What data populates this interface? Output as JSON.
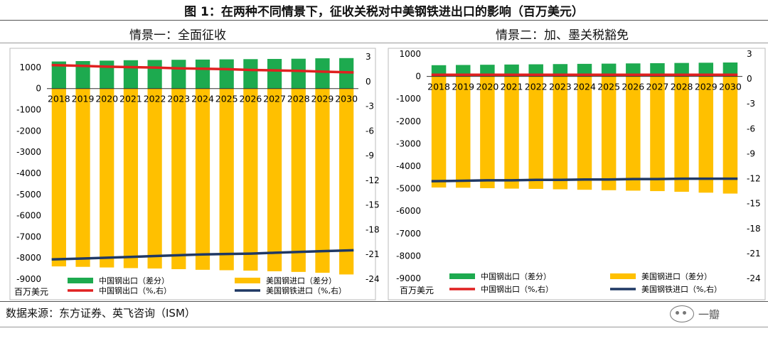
{
  "figure_title": "图 1：在两种不同情景下，征收关税对中美钢铁进出口的影响（百万美元）",
  "source_note": "数据来源：东方证券、英飞咨询（ISM）",
  "watermark": "一瓣",
  "colors": {
    "china_export_bar": "#1DAA4F",
    "us_import_bar": "#FFC000",
    "china_export_line": "#E02020",
    "us_import_line": "#1F3864"
  },
  "chart_data": [
    {
      "type": "bar",
      "subtitle": "情景一：全面征收",
      "categories": [
        "2018",
        "2019",
        "2020",
        "2021",
        "2022",
        "2023",
        "2024",
        "2025",
        "2026",
        "2027",
        "2028",
        "2029",
        "2030"
      ],
      "ylabel": "百万美元",
      "ylim": [
        -9000,
        1500
      ],
      "yticks": [
        1000,
        0,
        -1000,
        -2000,
        -3000,
        -4000,
        -5000,
        -6000,
        -7000,
        -8000,
        -9000
      ],
      "y2lim": [
        -24,
        3
      ],
      "y2ticks": [
        3,
        0,
        -3,
        -6,
        -9,
        -12,
        -15,
        -18,
        -21,
        -24
      ],
      "series": [
        {
          "name": "中国钢出口（差分）",
          "kind": "bar",
          "axis": "left",
          "color": "#1DAA4F",
          "values": [
            1280,
            1300,
            1320,
            1340,
            1350,
            1360,
            1370,
            1380,
            1390,
            1400,
            1410,
            1430,
            1440
          ]
        },
        {
          "name": "美国钢进口（差分）",
          "kind": "bar",
          "axis": "left",
          "color": "#FFC000",
          "values": [
            -8400,
            -8420,
            -8450,
            -8480,
            -8500,
            -8530,
            -8560,
            -8580,
            -8600,
            -8630,
            -8660,
            -8700,
            -8780
          ]
        }
      ],
      "lines": [
        {
          "name": "中国钢出口（%,右）",
          "axis": "right",
          "color": "#E02020",
          "values": [
            2.0,
            1.9,
            1.8,
            1.75,
            1.7,
            1.6,
            1.55,
            1.5,
            1.4,
            1.35,
            1.3,
            1.2,
            1.1
          ]
        },
        {
          "name": "美国钢铁进口（%,右）",
          "axis": "right",
          "color": "#1F3864",
          "values": [
            -21.6,
            -21.5,
            -21.4,
            -21.3,
            -21.2,
            -21.1,
            -21.0,
            -20.95,
            -20.9,
            -20.8,
            -20.7,
            -20.6,
            -20.5
          ]
        }
      ]
    },
    {
      "type": "bar",
      "subtitle": "情景二：加、墨关税豁免",
      "categories": [
        "2018",
        "2019",
        "2020",
        "2021",
        "2022",
        "2023",
        "2024",
        "2025",
        "2026",
        "2027",
        "2028",
        "2029",
        "2030"
      ],
      "ylabel": "百万美元",
      "ylim": [
        -9000,
        1000
      ],
      "yticks": [
        1000,
        0,
        -1000,
        -2000,
        -3000,
        -4000,
        -5000,
        -6000,
        -7000,
        -8000,
        -9000
      ],
      "y2lim": [
        -24,
        3
      ],
      "y2ticks": [
        3,
        0,
        -3,
        -6,
        -9,
        -12,
        -15,
        -18,
        -21,
        -24
      ],
      "series": [
        {
          "name": "中国钢出口（差分）",
          "kind": "bar",
          "axis": "left",
          "color": "#1DAA4F",
          "values": [
            500,
            510,
            520,
            530,
            540,
            550,
            560,
            570,
            580,
            590,
            600,
            610,
            620
          ]
        },
        {
          "name": "美国钢进口（差分）",
          "kind": "bar",
          "axis": "left",
          "color": "#FFC000",
          "values": [
            -4950,
            -4960,
            -4980,
            -5000,
            -5010,
            -5030,
            -5050,
            -5070,
            -5090,
            -5110,
            -5140,
            -5180,
            -5220
          ]
        }
      ],
      "lines": [
        {
          "name": "中国钢出口（%,右）",
          "axis": "right",
          "color": "#E02020",
          "values": [
            0.5,
            0.5,
            0.5,
            0.5,
            0.5,
            0.5,
            0.5,
            0.5,
            0.5,
            0.5,
            0.5,
            0.5,
            0.5
          ]
        },
        {
          "name": "美国钢铁进口（%,右）",
          "axis": "right",
          "color": "#1F3864",
          "values": [
            -12.3,
            -12.25,
            -12.2,
            -12.2,
            -12.15,
            -12.15,
            -12.1,
            -12.1,
            -12.05,
            -12.05,
            -12.0,
            -12.0,
            -12.0
          ]
        }
      ]
    }
  ]
}
